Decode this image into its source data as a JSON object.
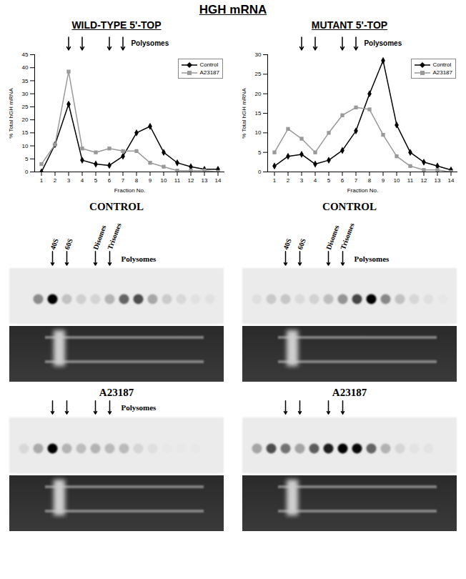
{
  "title": "HGH mRNA",
  "chart_data": [
    {
      "type": "line",
      "title": "WILD-TYPE 5'-TOP",
      "xlabel": "Fraction No.",
      "ylabel": "% Total hGH mRNA",
      "x": [
        1,
        2,
        3,
        4,
        5,
        6,
        7,
        8,
        9,
        10,
        11,
        12,
        13,
        14
      ],
      "series": [
        {
          "name": "Control",
          "color": "#000000",
          "marker": "diamond",
          "values": [
            0,
            10.5,
            26,
            4.5,
            3,
            2.5,
            6,
            15,
            17.5,
            7.5,
            3.5,
            2,
            1,
            1
          ]
        },
        {
          "name": "A23187",
          "color": "#999999",
          "marker": "square",
          "values": [
            3,
            10.5,
            38.5,
            9,
            7.5,
            9,
            8,
            8,
            3.5,
            2,
            0.5,
            0.5,
            0.5,
            0
          ]
        }
      ],
      "xlim": [
        0.5,
        14.5
      ],
      "xticks": [
        1,
        2,
        3,
        4,
        5,
        6,
        7,
        8,
        9,
        10,
        11,
        12,
        13,
        14
      ],
      "ylim": [
        0,
        45
      ],
      "yticks": [
        0,
        5,
        10,
        15,
        20,
        25,
        30,
        35,
        40,
        45
      ],
      "grid": false,
      "legend": "top-right",
      "annotations": [
        {
          "text": "Polysomes",
          "arrows": [
            3,
            4,
            6,
            7
          ]
        }
      ]
    },
    {
      "type": "line",
      "title": "MUTANT 5'-TOP",
      "xlabel": "Fraction No.",
      "ylabel": "% Total hGH mRNA",
      "x": [
        1,
        2,
        3,
        4,
        5,
        6,
        7,
        8,
        9,
        10,
        11,
        12,
        13,
        14
      ],
      "series": [
        {
          "name": "Control",
          "color": "#000000",
          "marker": "diamond",
          "values": [
            1.5,
            4,
            4.5,
            2,
            3,
            5.5,
            10.5,
            20,
            28.5,
            12,
            5,
            2.5,
            1.5,
            0.5
          ]
        },
        {
          "name": "A23187",
          "color": "#999999",
          "marker": "square",
          "values": [
            5,
            11,
            8.5,
            5,
            10,
            14.5,
            16.5,
            16,
            9.5,
            4,
            1.5,
            0.5,
            0.5,
            0
          ]
        }
      ],
      "xlim": [
        0.5,
        14.5
      ],
      "xticks": [
        1,
        2,
        3,
        4,
        5,
        6,
        7,
        8,
        9,
        10,
        11,
        12,
        13,
        14
      ],
      "ylim": [
        0,
        30
      ],
      "yticks": [
        0,
        5,
        10,
        15,
        20,
        25,
        30
      ],
      "grid": false,
      "legend": "top-right",
      "annotations": [
        {
          "text": "Polysomes",
          "arrows": [
            3,
            4,
            6,
            7
          ]
        }
      ]
    }
  ],
  "blot_panels": [
    [
      {
        "heading": "CONTROL",
        "lane_labels": [
          "40S",
          "60S",
          "Disomes",
          "Trisomes"
        ],
        "label": "Polysomes"
      },
      {
        "heading": "A23187",
        "label": "Polysomes"
      }
    ],
    [
      {
        "heading": "CONTROL",
        "lane_labels": [
          "40S",
          "60S",
          "Disomes",
          "Trisomes"
        ],
        "label": "Polysomes"
      },
      {
        "heading": "A23187"
      }
    ]
  ]
}
